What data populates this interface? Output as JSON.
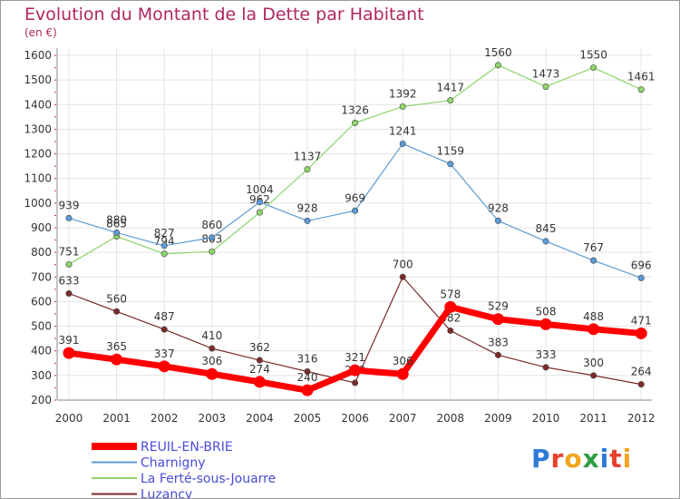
{
  "page": {
    "title": "Evolution du Montant de la Dette par Habitant",
    "subtitle": "(en €)"
  },
  "logo": {
    "text": "Proxiti"
  },
  "chart_data": {
    "type": "line",
    "title": "Evolution du Montant de la Dette par Habitant",
    "subtitle": "(en €)",
    "xlabel": "",
    "ylabel": "",
    "ylim": [
      200,
      1600
    ],
    "yticks": [
      200,
      300,
      400,
      500,
      600,
      700,
      800,
      900,
      1000,
      1100,
      1200,
      1300,
      1400,
      1500,
      1600
    ],
    "categories": [
      "2000",
      "2001",
      "2002",
      "2003",
      "2004",
      "2005",
      "2006",
      "2007",
      "2008",
      "2009",
      "2010",
      "2011",
      "2012"
    ],
    "grid": true,
    "legend_position": "bottom-left",
    "series": [
      {
        "name": "REUIL-EN-BRIE",
        "color": "#ff0000",
        "values": [
          391,
          365,
          337,
          306,
          274,
          240,
          321,
          306,
          578,
          529,
          508,
          488,
          471
        ]
      },
      {
        "name": "Charnigny",
        "color": "#5b9bd5",
        "values": [
          939,
          880,
          827,
          860,
          1004,
          928,
          969,
          1241,
          1159,
          928,
          845,
          767,
          696
        ]
      },
      {
        "name": "La Ferté-sous-Jouarre",
        "color": "#8ed46a",
        "values": [
          751,
          865,
          794,
          803,
          962,
          1137,
          1326,
          1392,
          1417,
          1560,
          1473,
          1550,
          1461
        ]
      },
      {
        "name": "Luzancy",
        "color": "#7b2a2a",
        "values": [
          633,
          560,
          487,
          410,
          362,
          316,
          270,
          700,
          482,
          383,
          333,
          300,
          264
        ]
      }
    ]
  }
}
